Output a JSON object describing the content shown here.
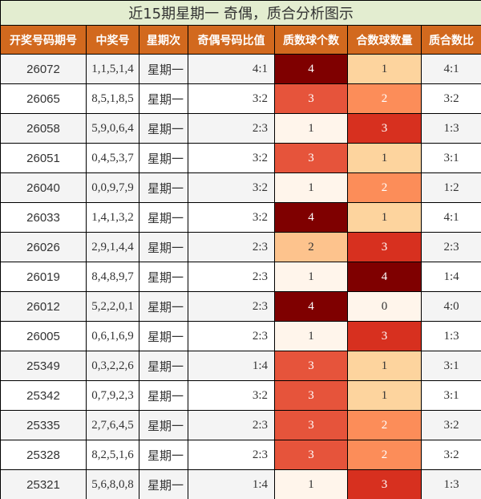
{
  "title": "近15期星期一 奇偶，质合分析图示",
  "columns": [
    "开奖号码期号",
    "中奖号",
    "星期次",
    "奇偶号码比值",
    "质数球个数",
    "合数球数量",
    "质合数比"
  ],
  "heat_colors": {
    "0": "#fff5eb",
    "1": "#fdd49e",
    "2": "#fc8d59",
    "3": "#e6543b",
    "4": "#7f0000"
  },
  "heat_colors_composite": {
    "0": "#fff5eb",
    "1": "#fdd49e",
    "2": "#fc8d59",
    "3": "#d7301f",
    "4": "#7f0000"
  },
  "prime_heat_colors": {
    "1": "#fff5eb",
    "2": "#fdc38d",
    "3": "#e6543b",
    "4": "#7f0000"
  },
  "rows": [
    {
      "issue": "26072",
      "numbers": "1,1,5,1,4",
      "weekday": "星期一",
      "odd_even": "4:1",
      "primes": "4",
      "composites": "1",
      "prime_composite": "4:1"
    },
    {
      "issue": "26065",
      "numbers": "8,5,1,8,5",
      "weekday": "星期一",
      "odd_even": "3:2",
      "primes": "3",
      "composites": "2",
      "prime_composite": "3:2"
    },
    {
      "issue": "26058",
      "numbers": "5,9,0,6,4",
      "weekday": "星期一",
      "odd_even": "2:3",
      "primes": "1",
      "composites": "3",
      "prime_composite": "1:3"
    },
    {
      "issue": "26051",
      "numbers": "0,4,5,3,7",
      "weekday": "星期一",
      "odd_even": "3:2",
      "primes": "3",
      "composites": "1",
      "prime_composite": "3:1"
    },
    {
      "issue": "26040",
      "numbers": "0,0,9,7,9",
      "weekday": "星期一",
      "odd_even": "3:2",
      "primes": "1",
      "composites": "2",
      "prime_composite": "1:2"
    },
    {
      "issue": "26033",
      "numbers": "1,4,1,3,2",
      "weekday": "星期一",
      "odd_even": "3:2",
      "primes": "4",
      "composites": "1",
      "prime_composite": "4:1"
    },
    {
      "issue": "26026",
      "numbers": "2,9,1,4,4",
      "weekday": "星期一",
      "odd_even": "2:3",
      "primes": "2",
      "composites": "3",
      "prime_composite": "2:3"
    },
    {
      "issue": "26019",
      "numbers": "8,4,8,9,7",
      "weekday": "星期一",
      "odd_even": "2:3",
      "primes": "1",
      "composites": "4",
      "prime_composite": "1:4"
    },
    {
      "issue": "26012",
      "numbers": "5,2,2,0,1",
      "weekday": "星期一",
      "odd_even": "2:3",
      "primes": "4",
      "composites": "0",
      "prime_composite": "4:0"
    },
    {
      "issue": "26005",
      "numbers": "0,6,1,6,9",
      "weekday": "星期一",
      "odd_even": "2:3",
      "primes": "1",
      "composites": "3",
      "prime_composite": "1:3"
    },
    {
      "issue": "25349",
      "numbers": "0,3,2,2,6",
      "weekday": "星期一",
      "odd_even": "1:4",
      "primes": "3",
      "composites": "1",
      "prime_composite": "3:1"
    },
    {
      "issue": "25342",
      "numbers": "0,7,9,2,3",
      "weekday": "星期一",
      "odd_even": "3:2",
      "primes": "3",
      "composites": "1",
      "prime_composite": "3:1"
    },
    {
      "issue": "25335",
      "numbers": "2,7,6,4,5",
      "weekday": "星期一",
      "odd_even": "2:3",
      "primes": "3",
      "composites": "2",
      "prime_composite": "3:2"
    },
    {
      "issue": "25328",
      "numbers": "8,2,5,1,6",
      "weekday": "星期一",
      "odd_even": "2:3",
      "primes": "3",
      "composites": "2",
      "prime_composite": "3:2"
    },
    {
      "issue": "25321",
      "numbers": "5,6,8,0,8",
      "weekday": "星期一",
      "odd_even": "1:4",
      "primes": "1",
      "composites": "3",
      "prime_composite": "1:3"
    }
  ]
}
